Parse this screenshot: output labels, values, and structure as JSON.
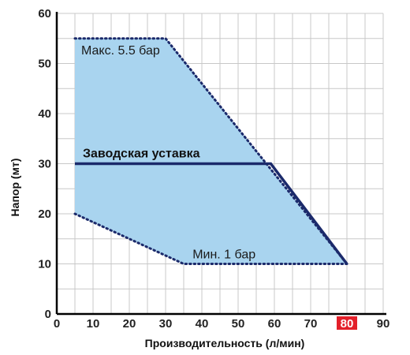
{
  "chart_data": {
    "type": "area",
    "xlabel": "Производительность (л/мин)",
    "ylabel": "Напор (мт)",
    "xlim": [
      0,
      90
    ],
    "ylim": [
      0,
      60
    ],
    "x_ticks": [
      0,
      10,
      20,
      30,
      40,
      50,
      60,
      70,
      80,
      90
    ],
    "y_ticks": [
      0,
      10,
      20,
      30,
      40,
      50,
      60
    ],
    "highlighted_x_tick": 80,
    "grid": true,
    "colors": {
      "region_fill": "#a9d4ef",
      "boundary": "#1b2a6b",
      "factory_line": "#1b2a6b",
      "highlight": "#e3202a",
      "grid": "#c8c8c8"
    },
    "region": {
      "max": {
        "label": "Макс. 5.5 бар",
        "x": [
          5,
          30,
          80
        ],
        "y": [
          55,
          55,
          10
        ]
      },
      "min": {
        "label": "Мин. 1 бар",
        "x": [
          5,
          35,
          80
        ],
        "y": [
          20,
          10,
          10
        ]
      }
    },
    "factory_setting": {
      "label": "Заводская уставка",
      "x": [
        5,
        59,
        80
      ],
      "y": [
        30,
        30,
        10
      ]
    }
  }
}
